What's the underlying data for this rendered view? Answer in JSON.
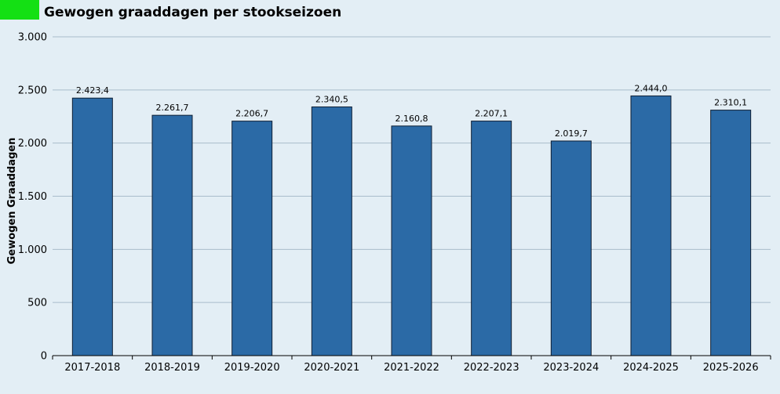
{
  "chart_data": {
    "type": "bar",
    "title": "Gewogen graaddagen per stookseizoen",
    "ylabel": "Gewogen Graaddagen",
    "xlabel": "",
    "categories": [
      "2017-2018",
      "2018-2019",
      "2019-2020",
      "2020-2021",
      "2021-2022",
      "2022-2023",
      "2023-2024",
      "2024-2025",
      "2025-2026"
    ],
    "values": [
      2423.4,
      2261.7,
      2206.7,
      2340.5,
      2160.8,
      2207.1,
      2019.7,
      2444.0,
      2310.1
    ],
    "value_labels": [
      "2.423,4",
      "2.261,7",
      "2.206,7",
      "2.340,5",
      "2.160,8",
      "2.207,1",
      "2.019,7",
      "2.444,0",
      "2.310,1"
    ],
    "ylim": [
      0,
      3000
    ],
    "yticks": [
      0,
      500,
      1000,
      1500,
      2000,
      2500,
      3000
    ],
    "ytick_labels": [
      "0",
      "500",
      "1.000",
      "1.500",
      "2.000",
      "2.500",
      "3.000"
    ],
    "grid": true,
    "legend": "none",
    "colors": {
      "bar": "#2b6aa6",
      "bar_border": "#0f1f33",
      "grid": "#a9bccb",
      "background": "#e3eef5",
      "accent": "#14e014"
    }
  }
}
